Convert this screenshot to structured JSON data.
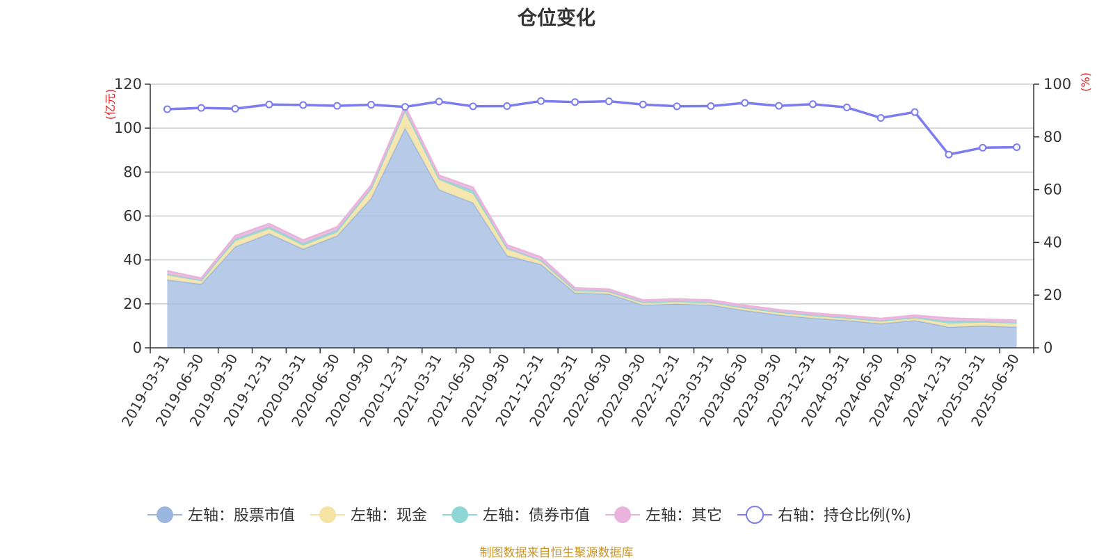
{
  "title": "仓位变化",
  "footer": "制图数据来自恒生聚源数据库",
  "chart_data": {
    "type": "area",
    "x": [
      "2019-03-31",
      "2019-06-30",
      "2019-09-30",
      "2019-12-31",
      "2020-03-31",
      "2020-06-30",
      "2020-09-30",
      "2020-12-31",
      "2021-03-31",
      "2021-06-30",
      "2021-09-30",
      "2021-12-31",
      "2022-03-31",
      "2022-06-30",
      "2022-09-30",
      "2022-12-31",
      "2023-03-31",
      "2023-06-30",
      "2023-09-30",
      "2023-12-31",
      "2024-03-31",
      "2024-06-30",
      "2024-09-30",
      "2024-12-31",
      "2025-03-31",
      "2025-06-30"
    ],
    "y_left": {
      "unit": "(亿元)",
      "ylim": [
        0,
        120
      ],
      "ticks": [
        "0",
        "20",
        "40",
        "60",
        "80",
        "100",
        "120"
      ]
    },
    "y_right": {
      "unit": "(%)",
      "ylim": [
        0,
        100
      ],
      "ticks": [
        "0",
        "20",
        "40",
        "60",
        "80",
        "100"
      ]
    },
    "grid": true,
    "legend_position": "bottom",
    "series": [
      {
        "name": "左轴：股票市值",
        "axis": "left",
        "kind": "stacked-area",
        "color": "#9bb7e0",
        "values": [
          31,
          29,
          46,
          52,
          45,
          51,
          68,
          100,
          72,
          66,
          42,
          38,
          25,
          24.5,
          19.5,
          20,
          19.5,
          17,
          15,
          13.5,
          12.5,
          11,
          12.5,
          9.5,
          10,
          9.5
        ]
      },
      {
        "name": "左轴：现金",
        "axis": "left",
        "kind": "stacked-area",
        "color": "#f5e3a3",
        "values": [
          2,
          1.5,
          2.5,
          2,
          1.5,
          1.5,
          4,
          7.5,
          4.5,
          4,
          3,
          1.5,
          1,
          1,
          1,
          1,
          1,
          1,
          1,
          1,
          1,
          1,
          1,
          1.5,
          1.5,
          1.5
        ]
      },
      {
        "name": "左轴：债券市值",
        "axis": "left",
        "kind": "stacked-area",
        "color": "#8fd6d6",
        "values": [
          0.5,
          0.2,
          1,
          1,
          1,
          1,
          0.5,
          0.5,
          0.5,
          1.5,
          0.3,
          0.3,
          0.2,
          0.2,
          0.2,
          0.2,
          0.2,
          0.3,
          0.3,
          0.3,
          0.2,
          0.3,
          0.3,
          1,
          0.5,
          0.5
        ]
      },
      {
        "name": "左轴：其它",
        "axis": "left",
        "kind": "stacked-area",
        "color": "#e9b3dc",
        "values": [
          1.5,
          1,
          1.5,
          1.5,
          1.5,
          1.5,
          1.5,
          2,
          1.5,
          1.5,
          1.5,
          1.5,
          1,
          1,
          1,
          1,
          1,
          1,
          1,
          1,
          1,
          1,
          1,
          1.5,
          1,
          1
        ]
      },
      {
        "name": "右轴：持仓比例(%)",
        "axis": "right",
        "kind": "line",
        "color": "#7a7cf0",
        "values": [
          90.5,
          91,
          90.7,
          92.3,
          92.1,
          91.8,
          92.2,
          91.4,
          93.4,
          91.6,
          91.7,
          93.6,
          93.2,
          93.5,
          92.3,
          91.6,
          91.7,
          92.9,
          91.8,
          92.4,
          91.2,
          87.2,
          89.4,
          73.3,
          75.9,
          76.1
        ]
      }
    ]
  }
}
